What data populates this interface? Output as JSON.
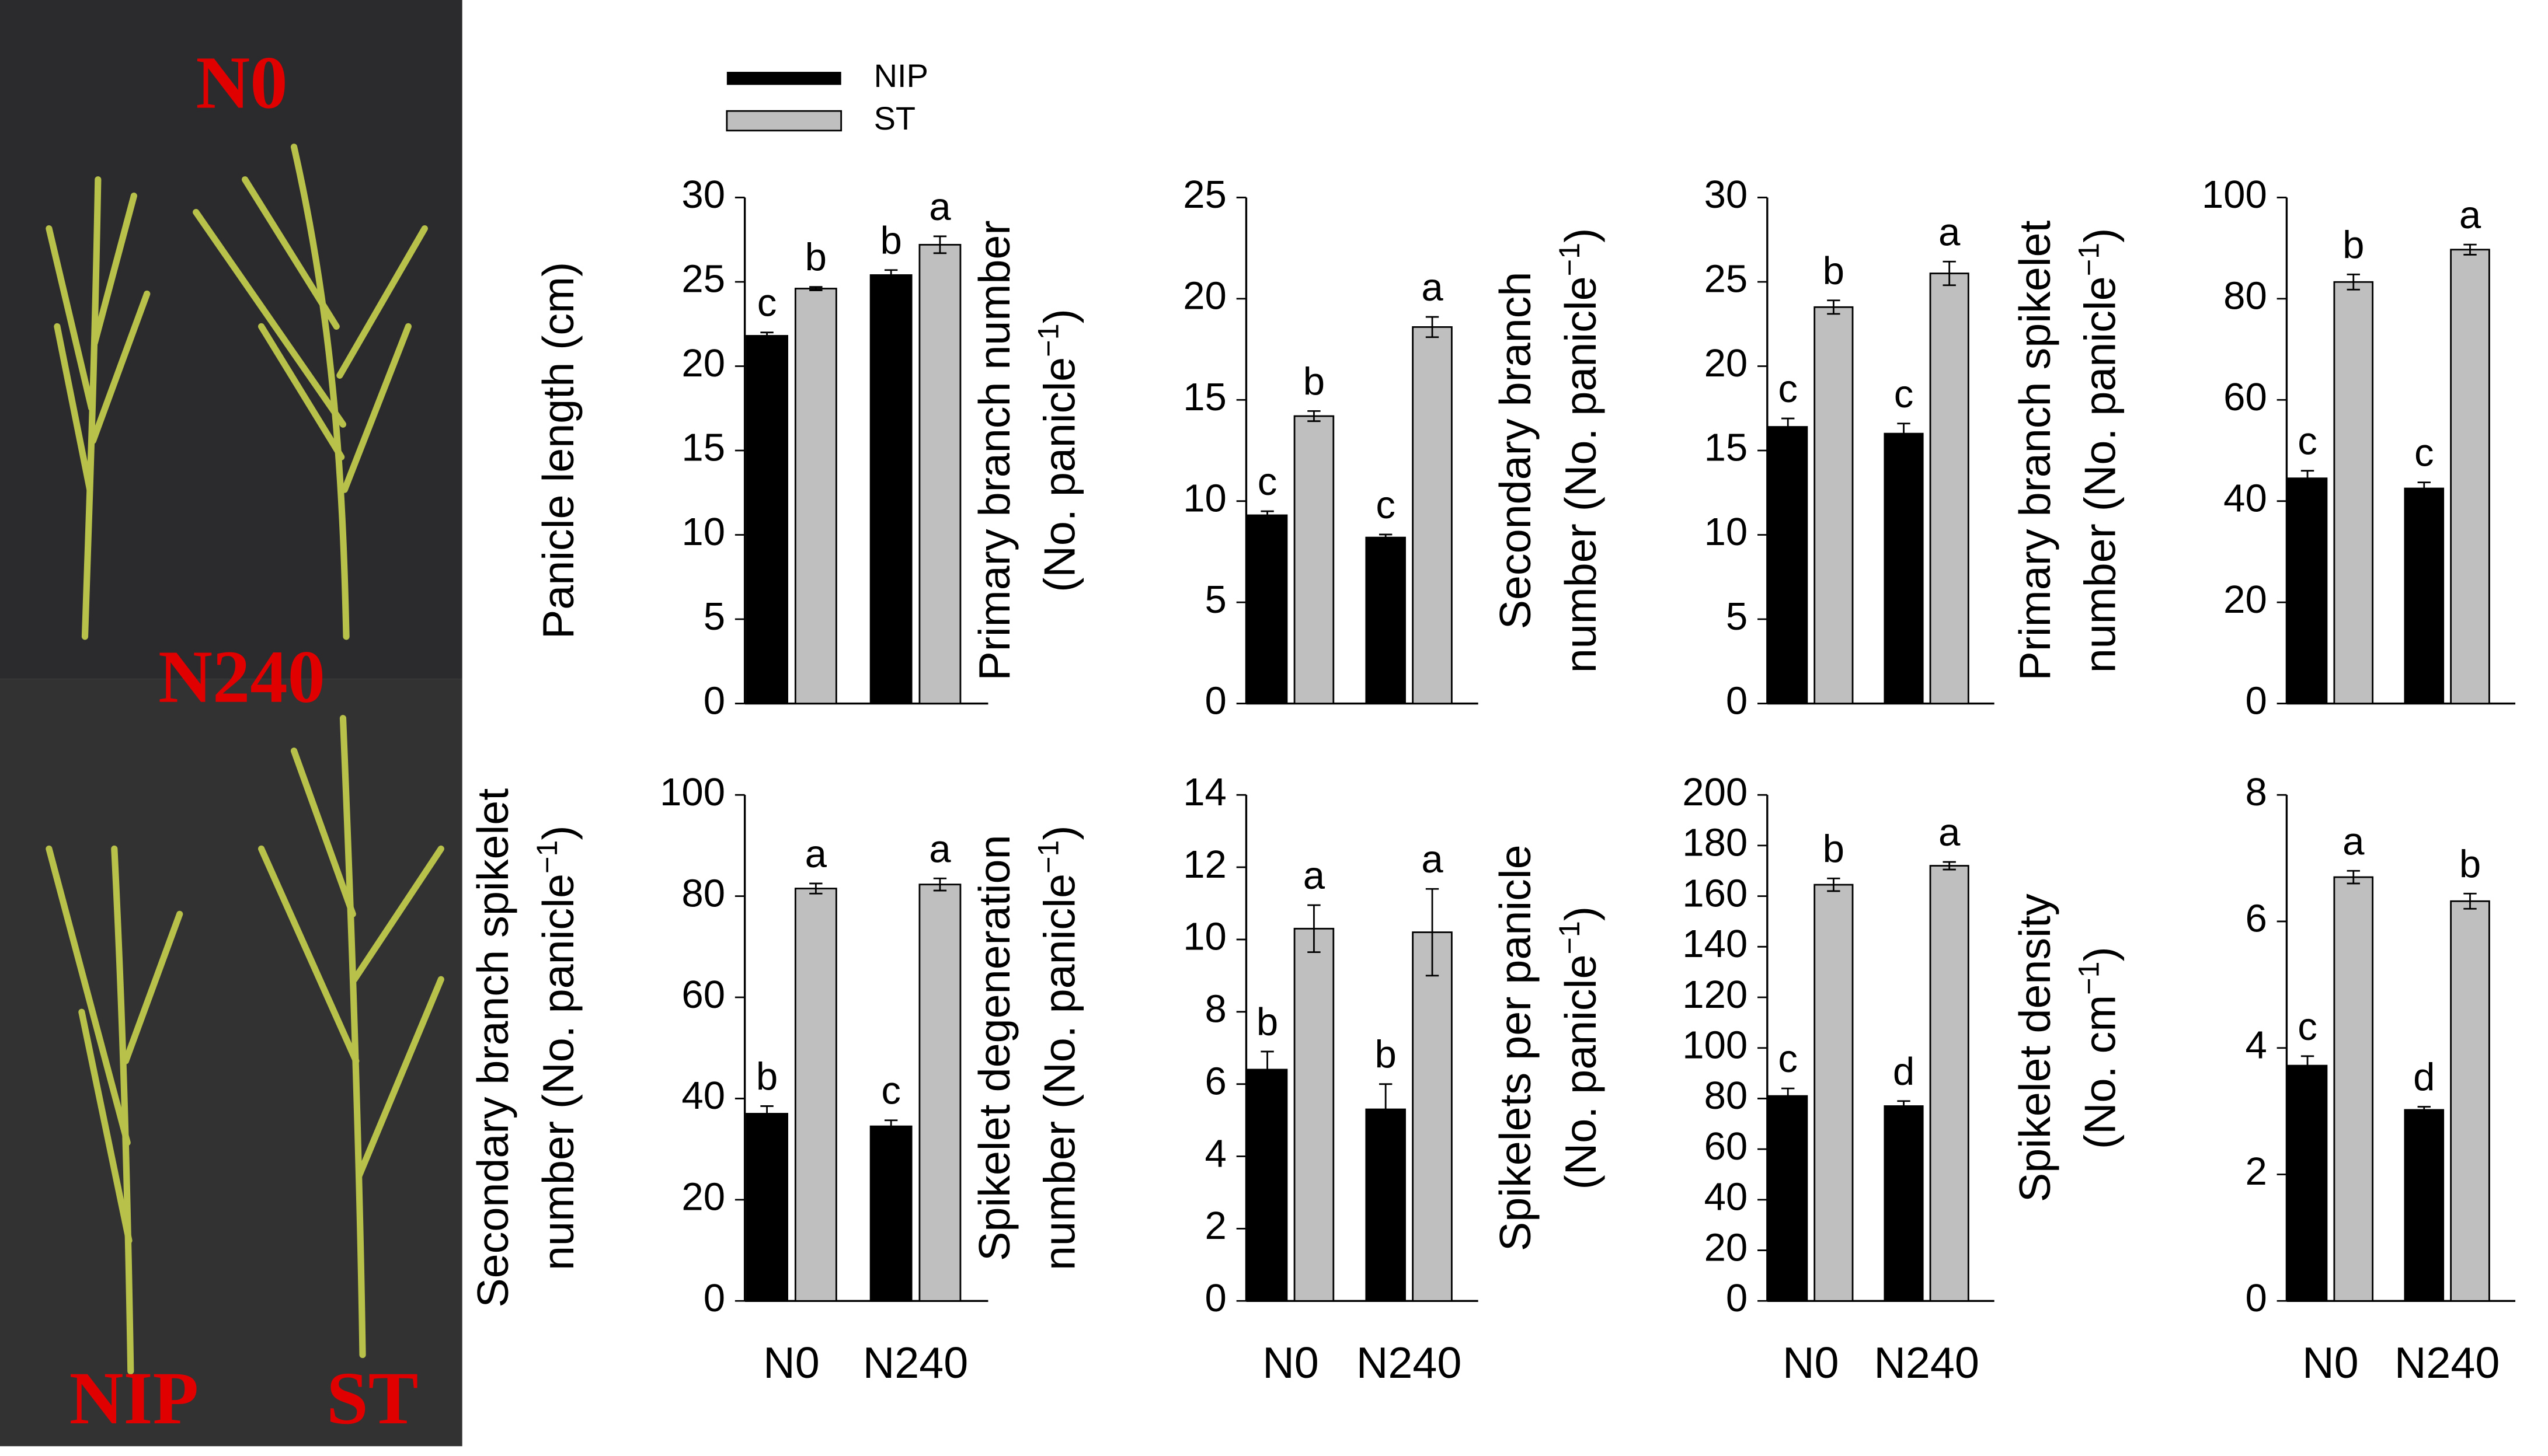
{
  "photo": {
    "labels": [
      "N0",
      "N240",
      "NIP",
      "ST"
    ]
  },
  "chart_data": [
    {
      "type": "bar",
      "ylabel": [
        "Panicle length (cm)"
      ],
      "ylim": [
        0,
        30
      ],
      "yticks": [
        0,
        5,
        10,
        15,
        20,
        25,
        30
      ],
      "series": [
        {
          "name": "NIP",
          "color": "#000000",
          "values": [
            21.8,
            25.4
          ],
          "errors": [
            0.2,
            0.3
          ],
          "letters": [
            "c",
            "b"
          ]
        },
        {
          "name": "ST",
          "color": "#bfbfbf",
          "values": [
            24.6,
            27.2
          ],
          "errors": [
            0.1,
            0.5
          ],
          "letters": [
            "b",
            "a"
          ]
        }
      ]
    },
    {
      "type": "bar",
      "ylabel": [
        "Primary branch number",
        {
          "text": "(No. panicle",
          "sup": "−1",
          "after": ")"
        }
      ],
      "ylim": [
        0,
        25
      ],
      "yticks": [
        0,
        5,
        10,
        15,
        20,
        25
      ],
      "series": [
        {
          "name": "NIP",
          "color": "#000000",
          "values": [
            9.3,
            8.2
          ],
          "errors": [
            0.2,
            0.15
          ],
          "letters": [
            "c",
            "c"
          ]
        },
        {
          "name": "ST",
          "color": "#bfbfbf",
          "values": [
            14.2,
            18.6
          ],
          "errors": [
            0.25,
            0.5
          ],
          "letters": [
            "b",
            "a"
          ]
        }
      ]
    },
    {
      "type": "bar",
      "ylabel": [
        "Secondary branch",
        {
          "text": "number (No. panicle",
          "sup": "−1",
          "after": ")"
        }
      ],
      "ylim": [
        0,
        30
      ],
      "yticks": [
        0,
        5,
        10,
        15,
        20,
        25,
        30
      ],
      "series": [
        {
          "name": "NIP",
          "color": "#000000",
          "values": [
            16.4,
            16.0
          ],
          "errors": [
            0.5,
            0.6
          ],
          "letters": [
            "c",
            "c"
          ]
        },
        {
          "name": "ST",
          "color": "#bfbfbf",
          "values": [
            23.5,
            25.5
          ],
          "errors": [
            0.4,
            0.7
          ],
          "letters": [
            "b",
            "a"
          ]
        }
      ]
    },
    {
      "type": "bar",
      "ylabel": [
        "Primary branch spikelet",
        {
          "text": "number (No. panicle",
          "sup": "−1",
          "after": ")"
        }
      ],
      "ylim": [
        0,
        100
      ],
      "yticks": [
        0,
        20,
        40,
        60,
        80,
        100
      ],
      "series": [
        {
          "name": "NIP",
          "color": "#000000",
          "values": [
            44.5,
            42.5
          ],
          "errors": [
            1.5,
            1.2
          ],
          "letters": [
            "c",
            "c"
          ]
        },
        {
          "name": "ST",
          "color": "#bfbfbf",
          "values": [
            83.3,
            89.7
          ],
          "errors": [
            1.5,
            1.0
          ],
          "letters": [
            "b",
            "a"
          ]
        }
      ]
    },
    {
      "type": "bar",
      "ylabel": [
        "Secondary branch spikelet",
        {
          "text": "number (No. panicle",
          "sup": "−1",
          "after": ")"
        }
      ],
      "ylim": [
        0,
        100
      ],
      "yticks": [
        0,
        20,
        40,
        60,
        80,
        100
      ],
      "categories": [
        "N0",
        "N240"
      ],
      "series": [
        {
          "name": "NIP",
          "color": "#000000",
          "values": [
            37,
            34.5
          ],
          "errors": [
            1.5,
            1.2
          ],
          "letters": [
            "b",
            "c"
          ]
        },
        {
          "name": "ST",
          "color": "#bfbfbf",
          "values": [
            81.5,
            82.3
          ],
          "errors": [
            1.0,
            1.2
          ],
          "letters": [
            "a",
            "a"
          ]
        }
      ]
    },
    {
      "type": "bar",
      "ylabel": [
        "Spikelet degeneration",
        {
          "text": "number (No. panicle",
          "sup": "−1",
          "after": ")"
        }
      ],
      "ylim": [
        0,
        14
      ],
      "yticks": [
        0,
        2,
        4,
        6,
        8,
        10,
        12,
        14
      ],
      "categories": [
        "N0",
        "N240"
      ],
      "series": [
        {
          "name": "NIP",
          "color": "#000000",
          "values": [
            6.4,
            5.3
          ],
          "errors": [
            0.5,
            0.7
          ],
          "letters": [
            "b",
            "b"
          ]
        },
        {
          "name": "ST",
          "color": "#bfbfbf",
          "values": [
            10.3,
            10.2
          ],
          "errors": [
            0.65,
            1.2
          ],
          "letters": [
            "a",
            "a"
          ]
        }
      ]
    },
    {
      "type": "bar",
      "ylabel": [
        "Spikelets per panicle",
        {
          "text": "(No. panicle",
          "sup": "−1",
          "after": ")"
        }
      ],
      "ylim": [
        0,
        200
      ],
      "yticks": [
        0,
        20,
        40,
        60,
        80,
        100,
        120,
        140,
        160,
        180,
        200
      ],
      "categories": [
        "N0",
        "N240"
      ],
      "series": [
        {
          "name": "NIP",
          "color": "#000000",
          "values": [
            81,
            77
          ],
          "errors": [
            3,
            2
          ],
          "letters": [
            "c",
            "d"
          ]
        },
        {
          "name": "ST",
          "color": "#bfbfbf",
          "values": [
            164.5,
            172
          ],
          "errors": [
            2.5,
            1.5
          ],
          "letters": [
            "b",
            "a"
          ]
        }
      ]
    },
    {
      "type": "bar",
      "ylabel": [
        "Spikelet density",
        {
          "text": "(No. cm",
          "sup": "−1",
          "after": ")"
        }
      ],
      "ylim": [
        0,
        8
      ],
      "yticks": [
        0,
        2,
        4,
        6,
        8
      ],
      "categories": [
        "N0",
        "N240"
      ],
      "series": [
        {
          "name": "NIP",
          "color": "#000000",
          "values": [
            3.72,
            3.02
          ],
          "errors": [
            0.15,
            0.05
          ],
          "letters": [
            "c",
            "d"
          ]
        },
        {
          "name": "ST",
          "color": "#bfbfbf",
          "values": [
            6.7,
            6.32
          ],
          "errors": [
            0.1,
            0.12
          ],
          "letters": [
            "a",
            "b"
          ]
        }
      ]
    }
  ]
}
